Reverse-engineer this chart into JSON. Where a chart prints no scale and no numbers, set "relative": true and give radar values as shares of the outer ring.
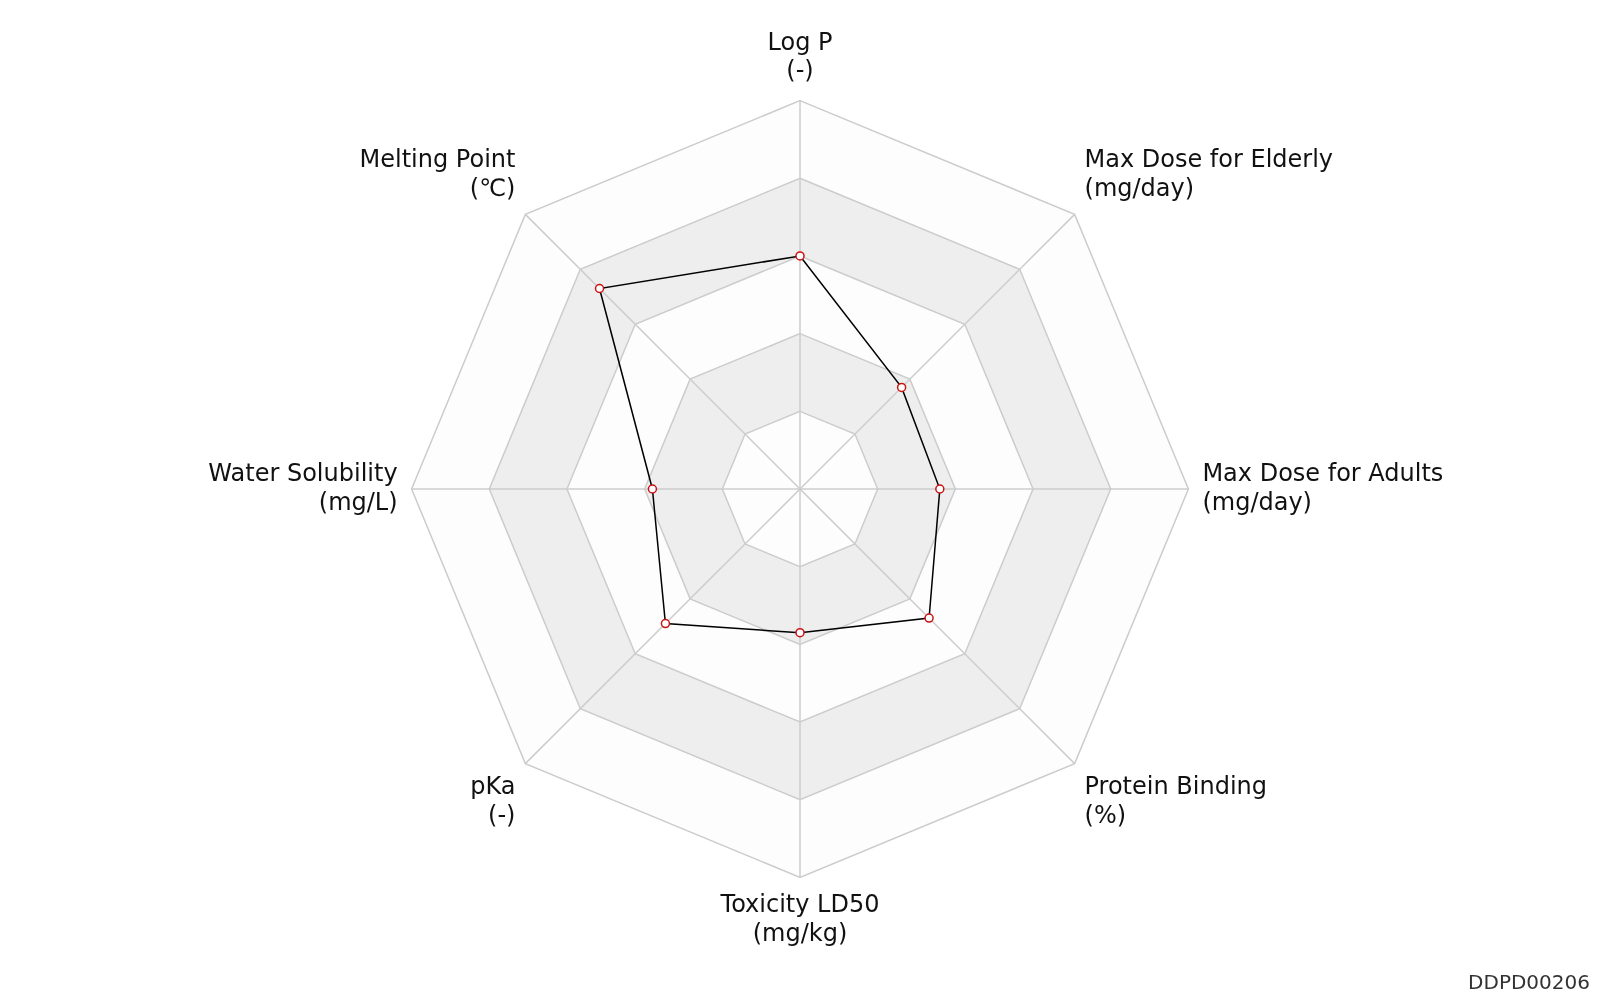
{
  "chart_data": {
    "type": "radar",
    "relative": true,
    "categories": [
      "Log P\n(-)",
      "Max Dose for Elderly\n(mg/day)",
      "Max Dose for Adults\n(mg/day)",
      "Protein Binding\n(%)",
      "Toxicity LD50\n(mg/kg)",
      "pKa\n(-)",
      "Water Solubility\n(mg/L)",
      "Melting Point\n(℃)"
    ],
    "series": [
      {
        "color": "#000000",
        "values": [
          0.6,
          0.37,
          0.36,
          0.47,
          0.37,
          0.49,
          0.38,
          0.73
        ]
      }
    ],
    "marker": "circle",
    "grid": true,
    "legend": false,
    "annotations": [
      "DDPD00206"
    ]
  }
}
